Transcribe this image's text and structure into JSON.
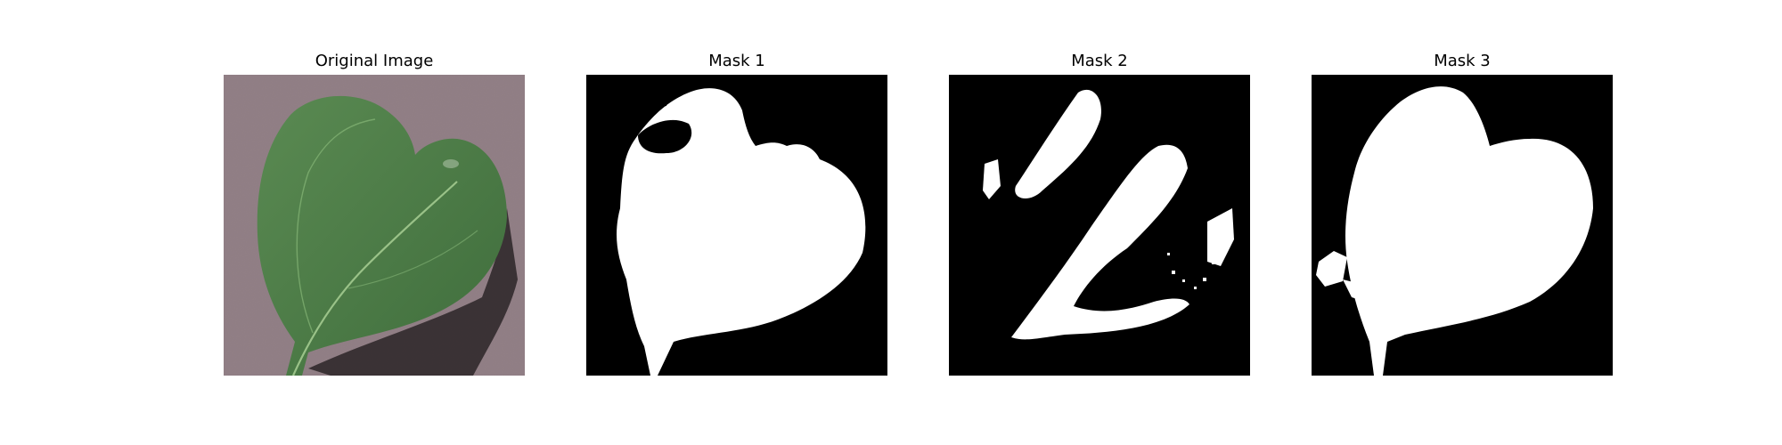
{
  "panels": [
    {
      "title": "Original Image"
    },
    {
      "title": "Mask 1"
    },
    {
      "title": "Mask 2"
    },
    {
      "title": "Mask 3"
    }
  ],
  "colors": {
    "background_photo": "#8c7a80",
    "leaf": "#4f7f4a",
    "leaf_dark": "#3e6b3c",
    "vein": "#8fbf7f",
    "shadow": "#2a2426",
    "mask_background": "#000000",
    "mask_foreground": "#ffffff"
  },
  "icons": [
    "leaf-photo",
    "segmentation-mask"
  ]
}
